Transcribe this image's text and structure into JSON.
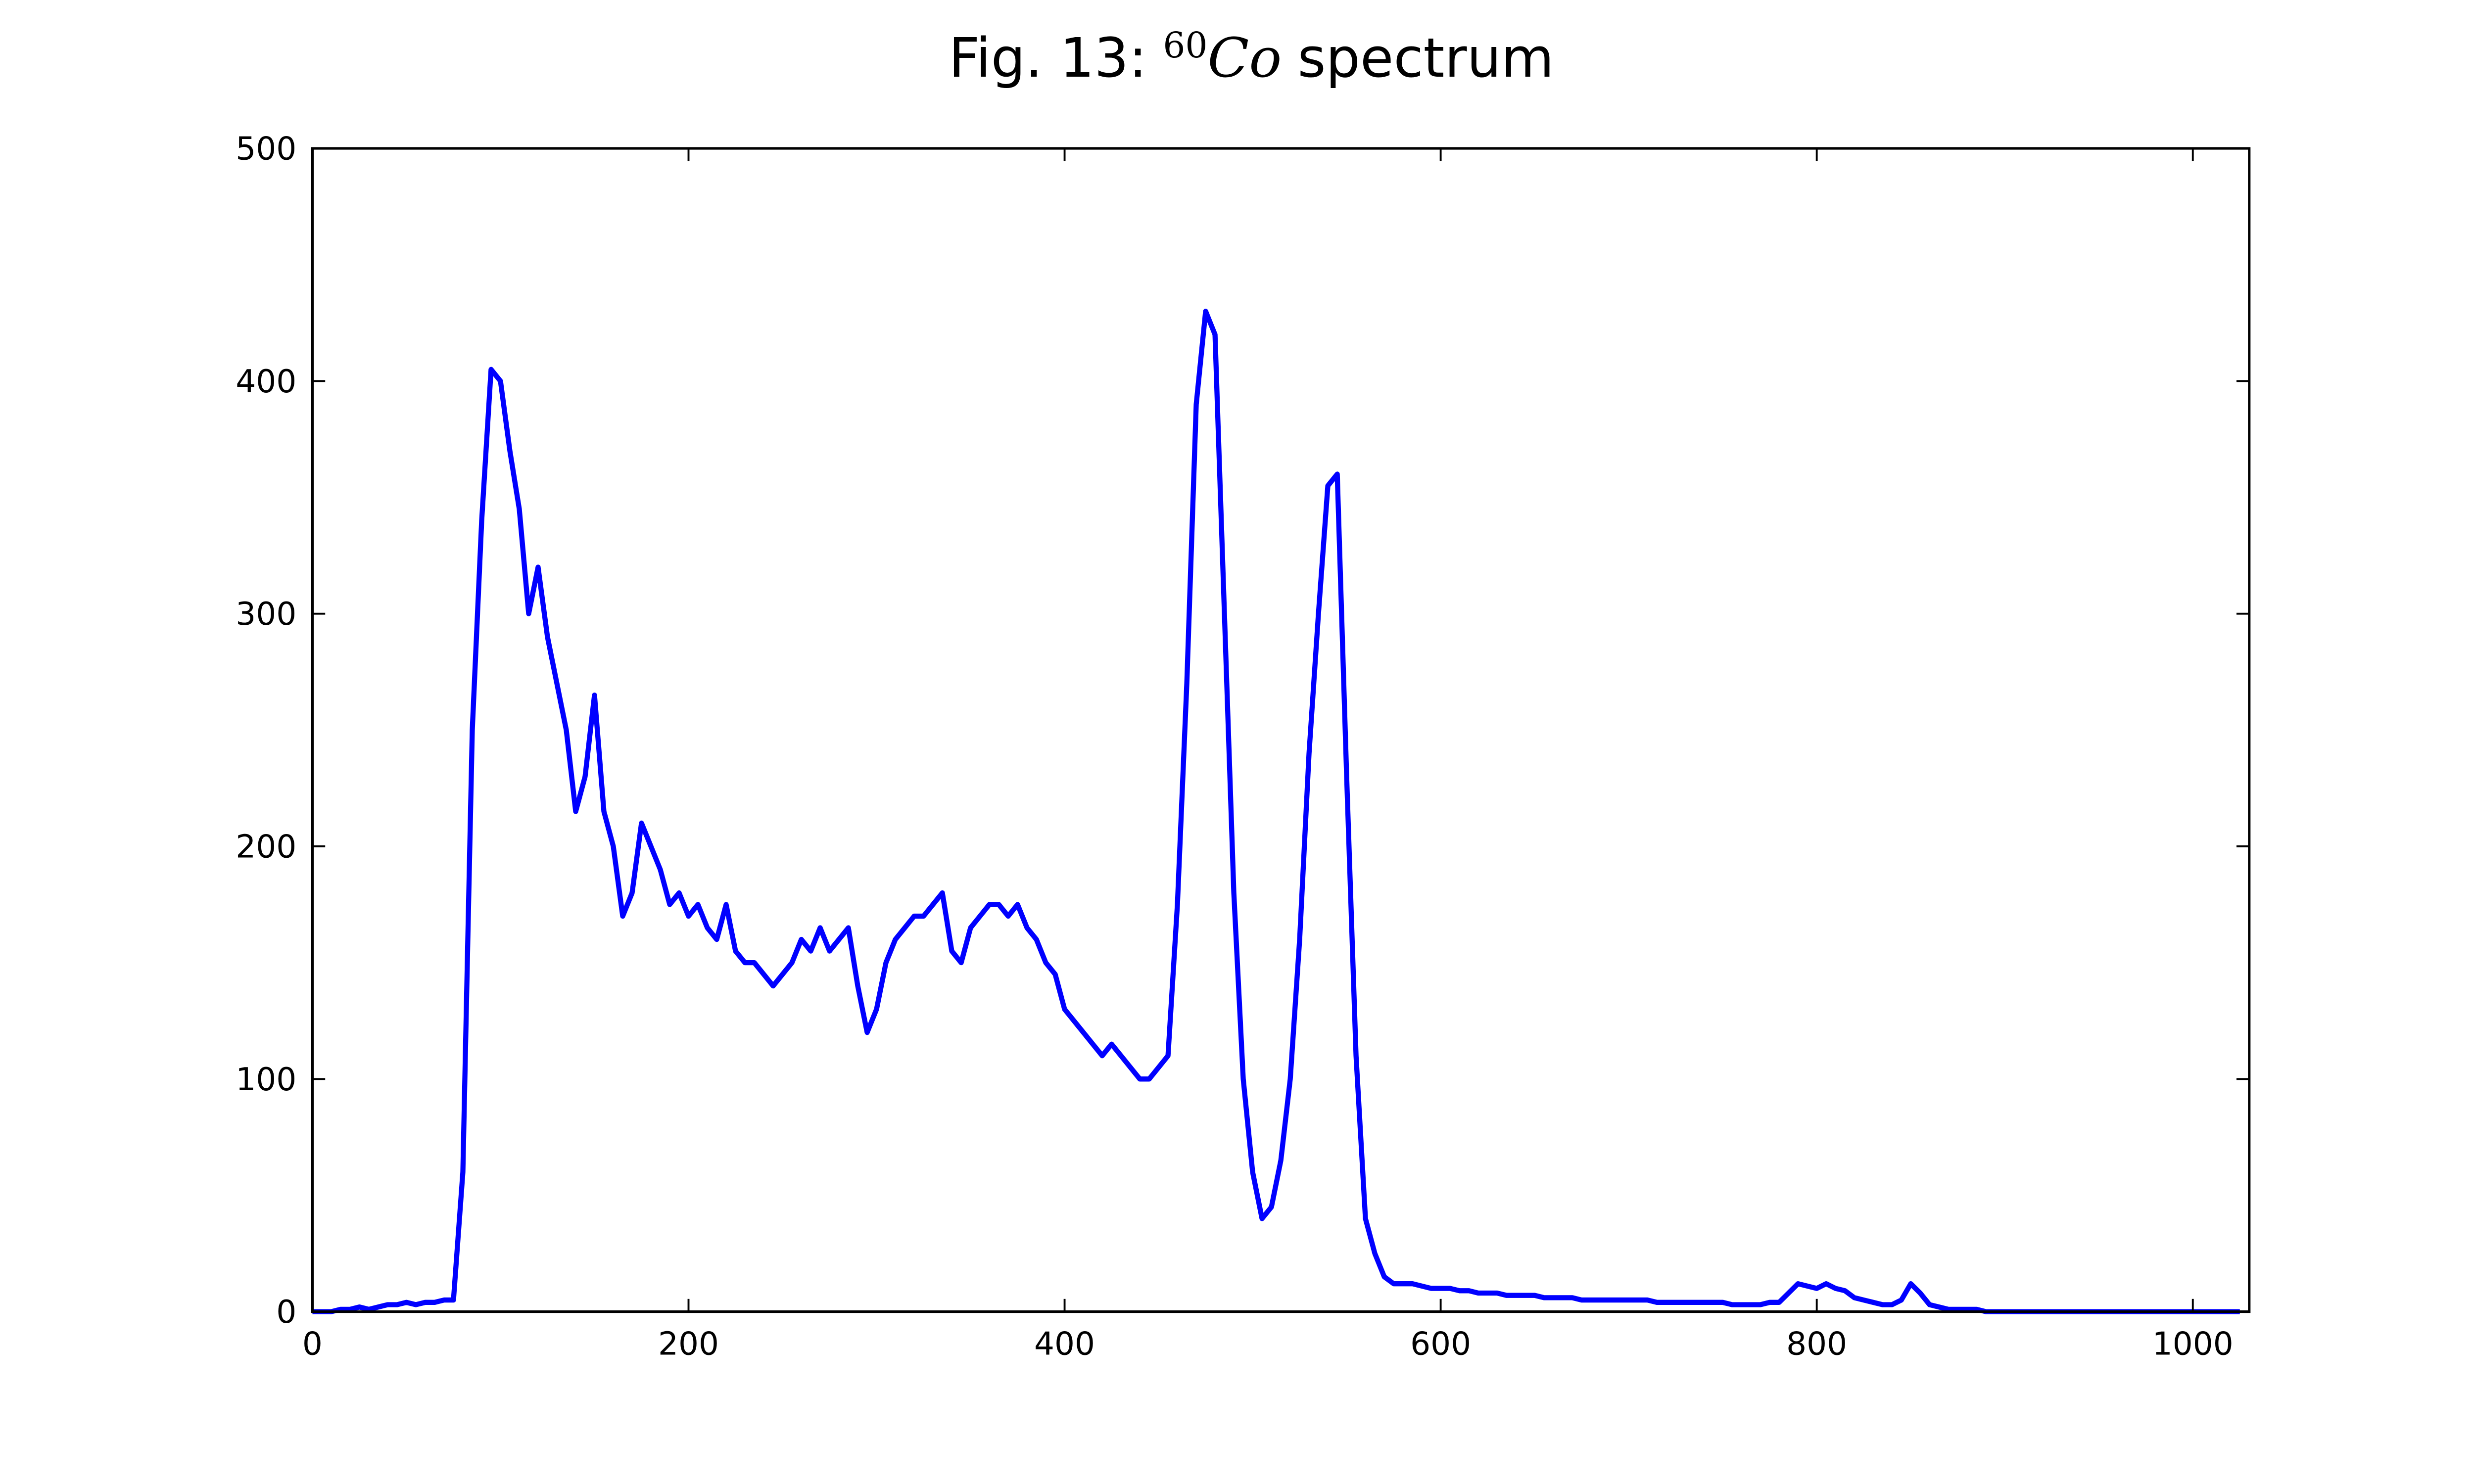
{
  "chart_data": {
    "type": "line",
    "title": {
      "prefix": "Fig. 13:",
      "mass_number": "60",
      "element": "Co",
      "suffix": "spectrum"
    },
    "x": [
      0,
      5,
      10,
      15,
      20,
      25,
      30,
      35,
      40,
      45,
      50,
      55,
      60,
      65,
      70,
      75,
      80,
      85,
      90,
      95,
      100,
      105,
      110,
      115,
      120,
      125,
      130,
      135,
      140,
      145,
      150,
      155,
      160,
      165,
      170,
      175,
      180,
      185,
      190,
      195,
      200,
      205,
      210,
      215,
      220,
      225,
      230,
      235,
      240,
      245,
      250,
      255,
      260,
      265,
      270,
      275,
      280,
      285,
      290,
      295,
      300,
      305,
      310,
      315,
      320,
      325,
      330,
      335,
      340,
      345,
      350,
      355,
      360,
      365,
      370,
      375,
      380,
      385,
      390,
      395,
      400,
      405,
      410,
      415,
      420,
      425,
      430,
      435,
      440,
      445,
      450,
      455,
      460,
      465,
      470,
      475,
      480,
      485,
      490,
      495,
      500,
      505,
      510,
      515,
      520,
      525,
      530,
      535,
      540,
      545,
      550,
      555,
      560,
      565,
      570,
      575,
      580,
      585,
      590,
      595,
      600,
      605,
      610,
      615,
      620,
      625,
      630,
      635,
      640,
      645,
      650,
      655,
      660,
      665,
      670,
      675,
      680,
      685,
      690,
      695,
      700,
      705,
      710,
      715,
      720,
      725,
      730,
      735,
      740,
      745,
      750,
      755,
      760,
      765,
      770,
      775,
      780,
      785,
      790,
      795,
      800,
      805,
      810,
      815,
      820,
      825,
      830,
      835,
      840,
      845,
      850,
      855,
      860,
      865,
      870,
      875,
      880,
      885,
      890,
      895,
      900,
      905,
      910,
      915,
      920,
      925,
      930,
      935,
      940,
      945,
      950,
      955,
      960,
      965,
      970,
      975,
      980,
      985,
      990,
      995,
      1000,
      1005,
      1010,
      1015,
      1020,
      1025
    ],
    "series": [
      {
        "color": "#0000ff",
        "values": [
          0,
          0,
          0,
          1,
          1,
          2,
          1,
          2,
          3,
          3,
          4,
          3,
          4,
          4,
          5,
          5,
          60,
          250,
          340,
          405,
          400,
          370,
          345,
          300,
          320,
          290,
          270,
          250,
          215,
          230,
          265,
          215,
          200,
          170,
          180,
          210,
          200,
          190,
          175,
          180,
          170,
          175,
          165,
          160,
          175,
          155,
          150,
          150,
          145,
          140,
          145,
          150,
          160,
          155,
          165,
          155,
          160,
          165,
          140,
          120,
          130,
          150,
          160,
          165,
          170,
          170,
          175,
          180,
          155,
          150,
          165,
          170,
          175,
          175,
          170,
          175,
          165,
          160,
          150,
          145,
          130,
          125,
          120,
          115,
          110,
          115,
          110,
          105,
          100,
          100,
          105,
          110,
          175,
          270,
          390,
          430,
          420,
          300,
          180,
          100,
          60,
          40,
          45,
          65,
          100,
          160,
          240,
          300,
          355,
          360,
          230,
          110,
          40,
          25,
          15,
          12,
          12,
          12,
          11,
          10,
          10,
          10,
          9,
          9,
          8,
          8,
          8,
          7,
          7,
          7,
          7,
          6,
          6,
          6,
          6,
          5,
          5,
          5,
          5,
          5,
          5,
          5,
          5,
          4,
          4,
          4,
          4,
          4,
          4,
          4,
          4,
          3,
          3,
          3,
          3,
          4,
          4,
          8,
          12,
          11,
          10,
          12,
          10,
          9,
          6,
          5,
          4,
          3,
          3,
          5,
          12,
          8,
          3,
          2,
          1,
          1,
          1,
          1,
          0,
          0,
          0,
          0,
          0,
          0,
          0,
          0,
          0,
          0,
          0,
          0,
          0,
          0,
          0,
          0,
          0,
          0,
          0,
          0,
          0,
          0,
          0,
          0,
          0,
          0,
          0,
          0
        ]
      }
    ],
    "xlim": [
      0,
      1030
    ],
    "ylim": [
      0,
      500
    ],
    "xticks": [
      0,
      200,
      400,
      600,
      800,
      1000
    ],
    "yticks": [
      0,
      100,
      200,
      300,
      400,
      500
    ],
    "grid": false
  }
}
